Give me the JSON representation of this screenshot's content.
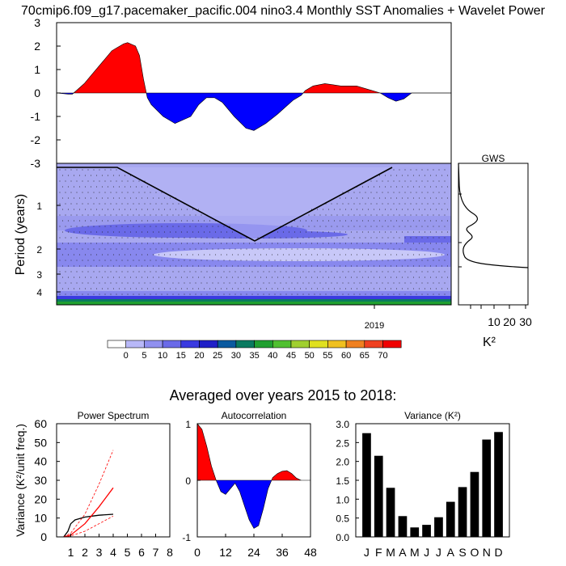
{
  "title": "70cmip6.f09_g17.pacemaker_pacific.004 nino3.4 Monthly SST Anomalies + Wavelet Power",
  "averaged_title": "Averaged over years 2015 to 2018:",
  "colorbar": {
    "labels": [
      "0",
      "5",
      "10",
      "15",
      "20",
      "25",
      "30",
      "35",
      "40",
      "45",
      "50",
      "55",
      "60",
      "65",
      "70"
    ],
    "colors": [
      "#ffffff",
      "#b8b8f8",
      "#9090f0",
      "#6a6ae8",
      "#3a3ae0",
      "#2020c8",
      "#0a5aa0",
      "#0a7a60",
      "#20a030",
      "#50c030",
      "#a0d030",
      "#e0e020",
      "#f0c020",
      "#f08020",
      "#f04020",
      "#f00000"
    ]
  },
  "chart_data": [
    {
      "type": "area",
      "name": "sst-anomaly-panel",
      "ylim": [
        -3,
        3
      ],
      "yticks": [
        "3",
        "2",
        "1",
        "0",
        "-1",
        "-2",
        "-3"
      ],
      "x": [
        0,
        0.03,
        0.04,
        0.05,
        0.07,
        0.09,
        0.12,
        0.14,
        0.15,
        0.17,
        0.18,
        0.2,
        0.21,
        0.22,
        0.23,
        0.24,
        0.27,
        0.3,
        0.34,
        0.36,
        0.38,
        0.4,
        0.42,
        0.45,
        0.48,
        0.5,
        0.53,
        0.56,
        0.58,
        0.6,
        0.62,
        0.63,
        0.65,
        0.68,
        0.7,
        0.72,
        0.74,
        0.76,
        0.78,
        0.8,
        0.82,
        0.84,
        0.86,
        0.88,
        0.9,
        0.92,
        0.95,
        0.97,
        0.99,
        1.0
      ],
      "values": [
        0,
        -0.05,
        -0.05,
        0.1,
        0.4,
        0.8,
        1.4,
        1.8,
        1.9,
        2.1,
        2.15,
        2.0,
        1.6,
        0.6,
        -0.2,
        -0.5,
        -1.0,
        -1.3,
        -1.0,
        -0.5,
        -0.2,
        -0.2,
        -0.4,
        -1.0,
        -1.5,
        -1.6,
        -1.3,
        -0.9,
        -0.6,
        -0.3,
        -0.1,
        0.1,
        0.3,
        0.4,
        0.35,
        0.3,
        0.3,
        0.3,
        0.2,
        0.1,
        0,
        -0.2,
        -0.35,
        -0.25,
        0,
        0,
        0,
        0,
        0,
        0
      ],
      "positive_color": "#ff0000",
      "negative_color": "#0000ff"
    },
    {
      "type": "heatmap",
      "name": "wavelet-power",
      "ylabel": "Period (years)",
      "yticks": [
        "1",
        "2",
        "3",
        "4"
      ],
      "xticks": [
        "2019"
      ]
    },
    {
      "type": "line",
      "name": "gws",
      "title": "GWS",
      "xlabel": "K²",
      "xticks": [
        "10",
        "20",
        "30"
      ]
    },
    {
      "type": "line",
      "name": "power-spectrum",
      "title": "Power Spectrum",
      "ylabel": "Variance (K²/unit freq.)",
      "ylim": [
        0,
        60
      ],
      "yticks": [
        "0",
        "10",
        "20",
        "30",
        "40",
        "50",
        "60"
      ],
      "xticks": [
        "1",
        "2",
        "3",
        "4",
        "5",
        "6",
        "7",
        "8"
      ],
      "series": [
        {
          "color": "#000000",
          "x": [
            0.5,
            0.8,
            1,
            1.3,
            2,
            2.5,
            3,
            4
          ],
          "values": [
            0,
            3,
            7,
            9,
            10.5,
            11,
            11.5,
            12
          ]
        },
        {
          "color": "#ff0000",
          "x": [
            0.5,
            1,
            2,
            3,
            4
          ],
          "values": [
            0,
            1,
            7,
            16,
            26
          ]
        },
        {
          "color": "#ff0000",
          "dashed": true,
          "x": [
            0.5,
            1,
            2,
            3,
            4
          ],
          "values": [
            0,
            2,
            12,
            28,
            46
          ]
        },
        {
          "color": "#ff0000",
          "dashed": true,
          "x": [
            0.5,
            1,
            2,
            3,
            4
          ],
          "values": [
            0,
            0.5,
            3,
            7,
            11
          ]
        }
      ]
    },
    {
      "type": "area",
      "name": "autocorrelation",
      "title": "Autocorrelation",
      "ylim": [
        -1,
        1
      ],
      "yticks": [
        "1",
        "0",
        "-1"
      ],
      "xticks": [
        "0",
        "12",
        "24",
        "36",
        "48"
      ],
      "x": [
        0,
        2,
        4,
        6,
        8,
        10,
        12,
        14,
        16,
        18,
        20,
        22,
        24,
        26,
        28,
        30,
        32,
        34,
        36,
        38,
        40,
        42,
        44
      ],
      "values": [
        1,
        0.9,
        0.6,
        0.25,
        0,
        -0.2,
        -0.25,
        -0.15,
        -0.05,
        -0.2,
        -0.45,
        -0.7,
        -0.85,
        -0.8,
        -0.5,
        -0.15,
        0.05,
        0.12,
        0.16,
        0.17,
        0.12,
        0.04,
        0
      ]
    },
    {
      "type": "bar",
      "name": "monthly-variance",
      "title": "Variance (K²)",
      "categories": [
        "J",
        "F",
        "M",
        "A",
        "M",
        "J",
        "J",
        "A",
        "S",
        "O",
        "N",
        "D"
      ],
      "values": [
        2.75,
        2.15,
        1.3,
        0.55,
        0.25,
        0.32,
        0.52,
        0.93,
        1.32,
        1.72,
        2.58,
        2.78
      ],
      "ylim": [
        0,
        3
      ],
      "yticks": [
        "0.0",
        "0.5",
        "1.0",
        "1.5",
        "2.0",
        "2.5",
        "3.0"
      ]
    }
  ]
}
